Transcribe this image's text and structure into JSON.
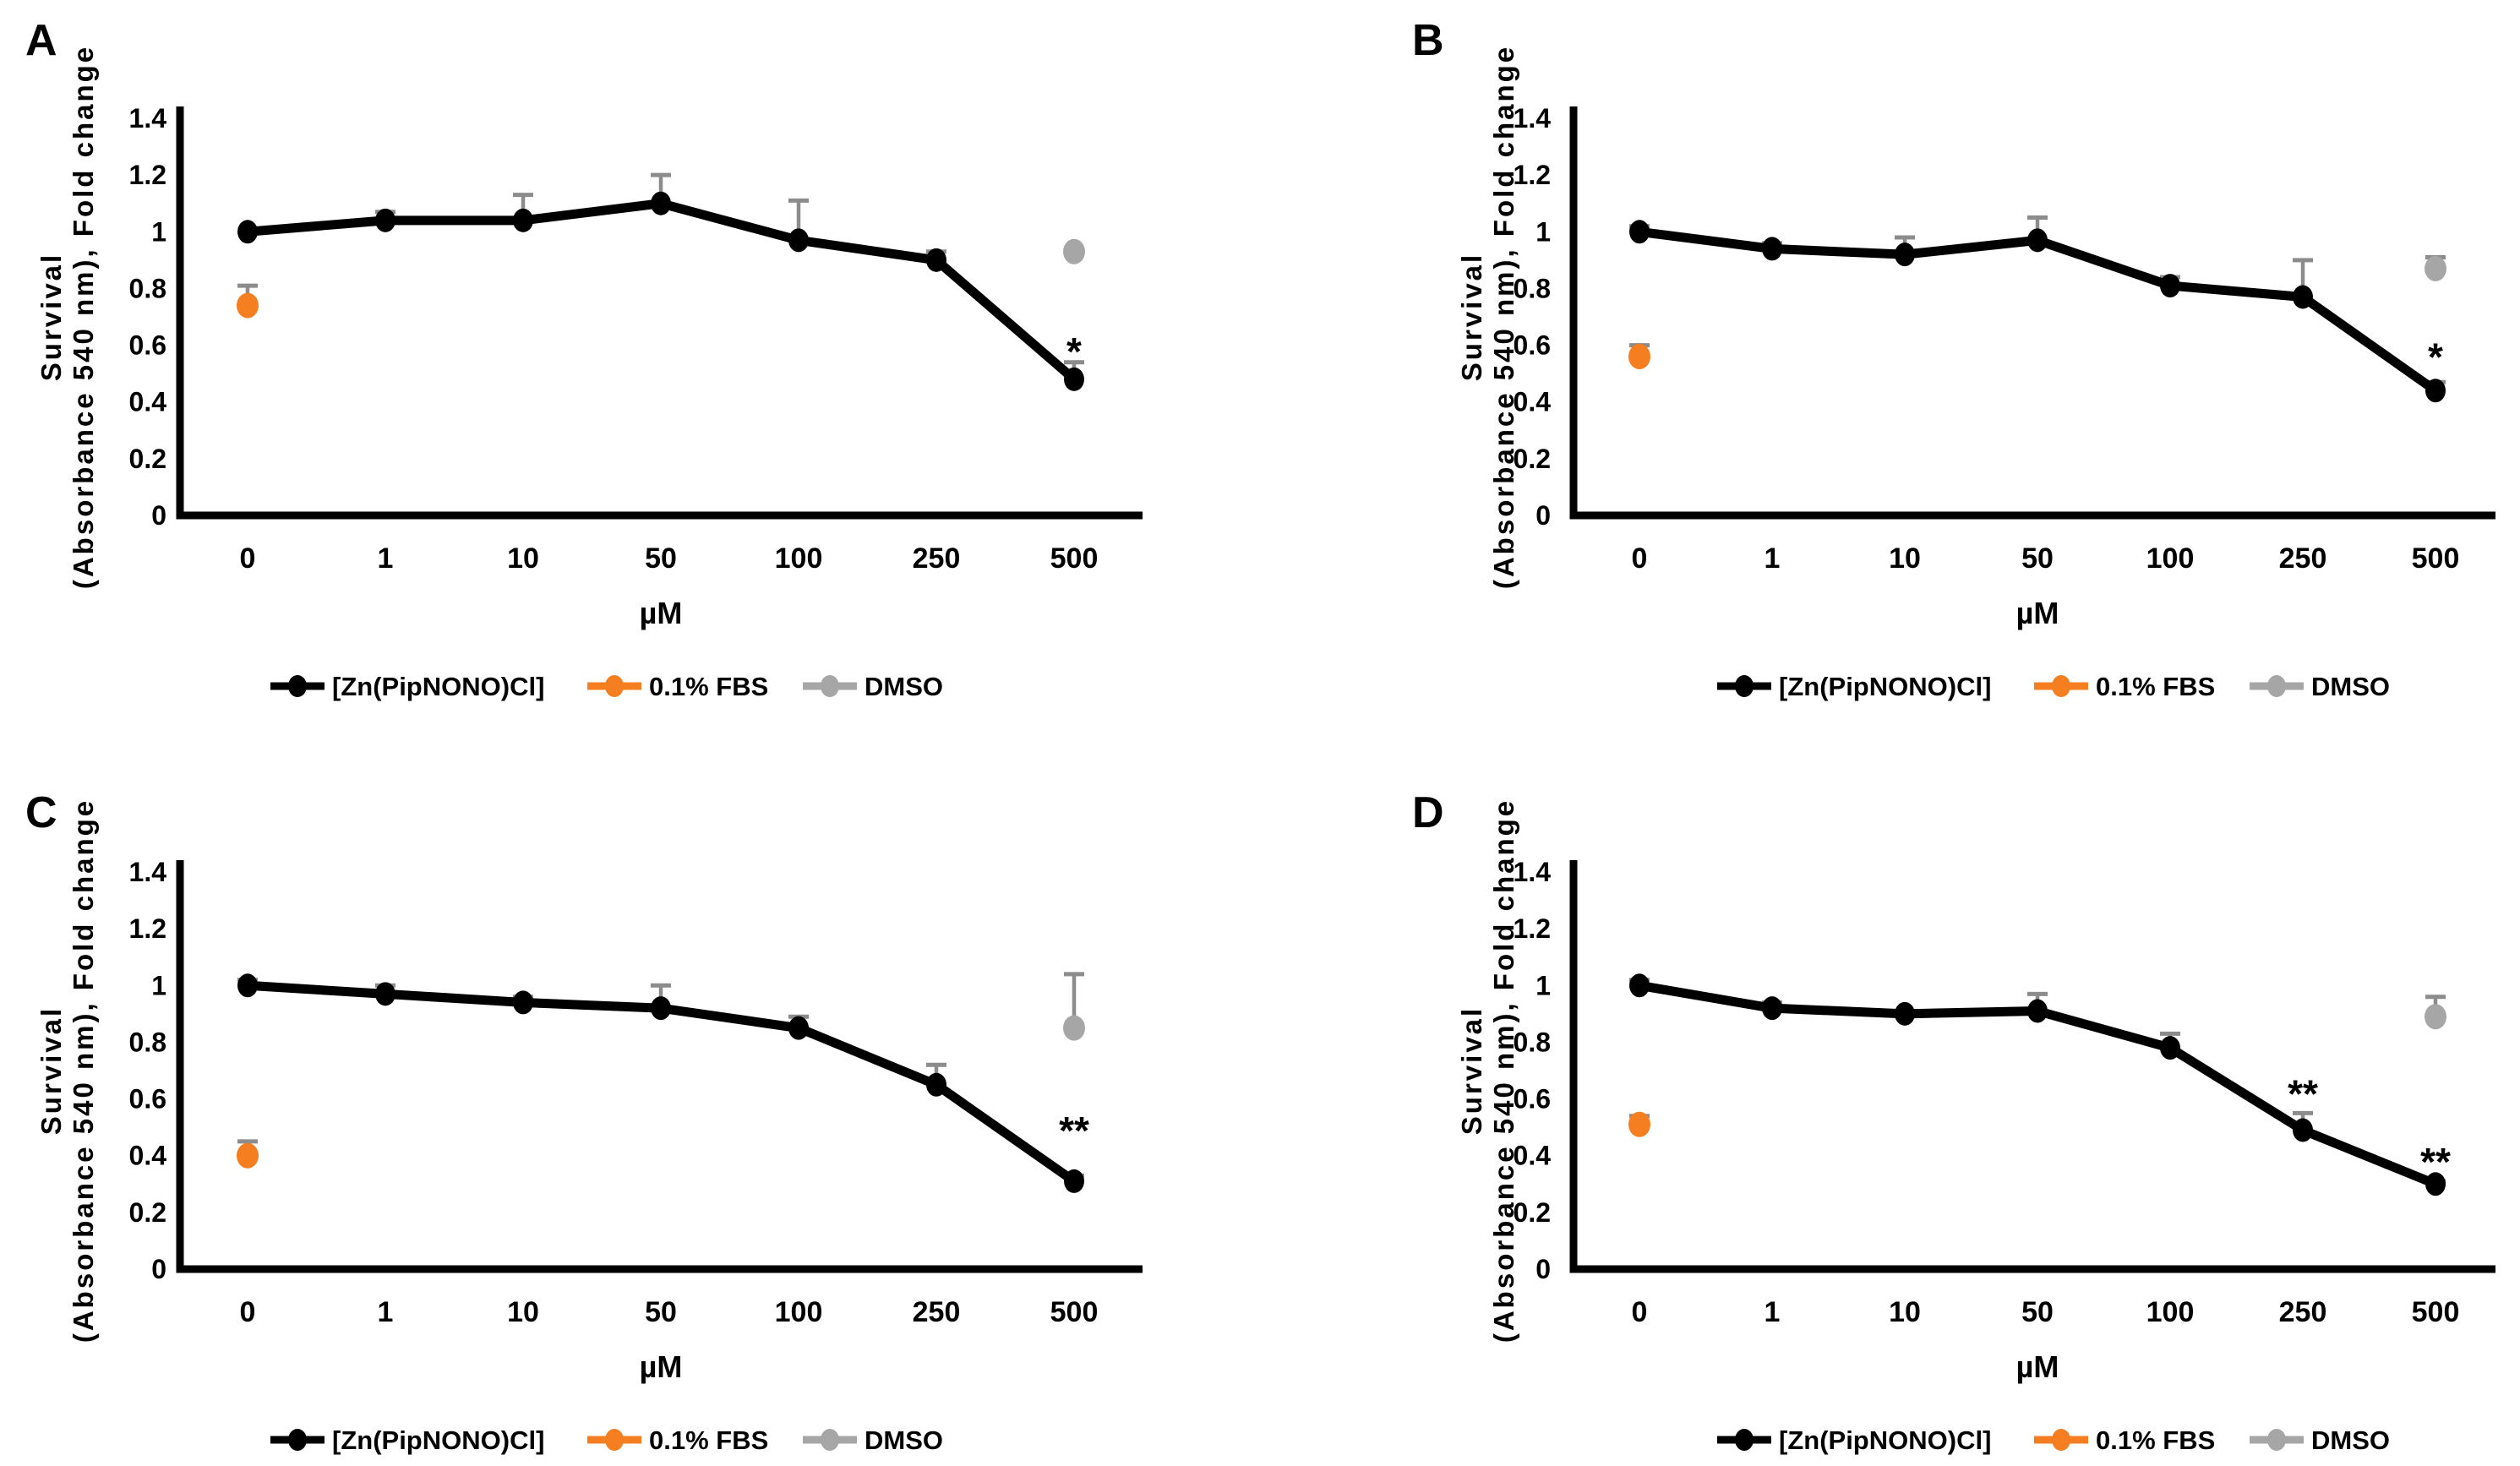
{
  "figure": {
    "background": "#ffffff",
    "colors": {
      "zn": "#000000",
      "fbs": "#F57E20",
      "dmso": "#A6A6A6",
      "error_bar": "#8C8C8C",
      "axis": "#000000",
      "text": "#000000"
    },
    "legend_labels": [
      "[Zn(PipNONO)Cl]",
      "0.1% FBS",
      "DMSO"
    ]
  },
  "chart_data": [
    {
      "panel": "A",
      "type": "line",
      "categories": [
        "0",
        "1",
        "10",
        "50",
        "100",
        "250",
        "500"
      ],
      "xlabel": "µM",
      "ylabel_line1": "Survival",
      "ylabel_line2": "(Absorbance 540 nm), Fold change",
      "ylim": [
        0,
        1.4
      ],
      "yticks": [
        "1.4",
        "1.2",
        "1",
        "0.8",
        "0.6",
        "0.4",
        "0.2",
        "0"
      ],
      "grid": false,
      "legend_position": "bottom",
      "series": [
        {
          "name": "[Zn(PipNONO)Cl]",
          "color": "#000000",
          "values": [
            1.0,
            1.04,
            1.04,
            1.1,
            0.97,
            0.9,
            0.48
          ],
          "errors_up": [
            0,
            0.03,
            0.09,
            0.1,
            0.14,
            0.03,
            0.06
          ]
        },
        {
          "name": "0.1% FBS",
          "color": "#F57E20",
          "points": [
            {
              "category": "0",
              "value": 0.74,
              "error_up": 0.07
            }
          ]
        },
        {
          "name": "DMSO",
          "color": "#A6A6A6",
          "points": [
            {
              "category": "500",
              "value": 0.93,
              "error_up": 0
            }
          ]
        }
      ],
      "annotations": [
        {
          "text": "*",
          "category": "500",
          "value": 0.62
        }
      ]
    },
    {
      "panel": "B",
      "type": "line",
      "categories": [
        "0",
        "1",
        "10",
        "50",
        "100",
        "250",
        "500"
      ],
      "xlabel": "µM",
      "ylabel_line1": "Survival",
      "ylabel_line2": "(Absorbance 540 nm), Fold change",
      "ylim": [
        0,
        1.4
      ],
      "yticks": [
        "1.4",
        "1.2",
        "1",
        "0.8",
        "0.6",
        "0.4",
        "0.2",
        "0"
      ],
      "grid": false,
      "legend_position": "bottom",
      "series": [
        {
          "name": "[Zn(PipNONO)Cl]",
          "color": "#000000",
          "values": [
            1.0,
            0.94,
            0.92,
            0.97,
            0.81,
            0.77,
            0.44
          ],
          "errors_up": [
            0.02,
            0.02,
            0.06,
            0.08,
            0.03,
            0.13,
            0.03
          ]
        },
        {
          "name": "0.1% FBS",
          "color": "#F57E20",
          "points": [
            {
              "category": "0",
              "value": 0.56,
              "error_up": 0.04
            }
          ]
        },
        {
          "name": "DMSO",
          "color": "#A6A6A6",
          "points": [
            {
              "category": "500",
              "value": 0.87,
              "error_up": 0.04
            }
          ]
        }
      ],
      "annotations": [
        {
          "text": "*",
          "category": "500",
          "value": 0.6
        }
      ]
    },
    {
      "panel": "C",
      "type": "line",
      "categories": [
        "0",
        "1",
        "10",
        "50",
        "100",
        "250",
        "500"
      ],
      "xlabel": "µM",
      "ylabel_line1": "Survival",
      "ylabel_line2": "(Absorbance 540 nm), Fold change",
      "ylim": [
        0,
        1.4
      ],
      "yticks": [
        "1.4",
        "1.2",
        "1",
        "0.8",
        "0.6",
        "0.4",
        "0.2",
        "0"
      ],
      "grid": false,
      "legend_position": "bottom",
      "series": [
        {
          "name": "[Zn(PipNONO)Cl]",
          "color": "#000000",
          "values": [
            1.0,
            0.97,
            0.94,
            0.92,
            0.85,
            0.65,
            0.31
          ],
          "errors_up": [
            0.02,
            0.03,
            0.02,
            0.08,
            0.04,
            0.07,
            0.02
          ]
        },
        {
          "name": "0.1% FBS",
          "color": "#F57E20",
          "points": [
            {
              "category": "0",
              "value": 0.4,
              "error_up": 0.05
            }
          ]
        },
        {
          "name": "DMSO",
          "color": "#A6A6A6",
          "points": [
            {
              "category": "500",
              "value": 0.85,
              "error_up": 0.19
            }
          ]
        }
      ],
      "annotations": [
        {
          "text": "**",
          "category": "500",
          "value": 0.53
        }
      ]
    },
    {
      "panel": "D",
      "type": "line",
      "categories": [
        "0",
        "1",
        "10",
        "50",
        "100",
        "250",
        "500"
      ],
      "xlabel": "µM",
      "ylabel_line1": "Survival",
      "ylabel_line2": "(Absorbance 540 nm), Fold change",
      "ylim": [
        0,
        1.4
      ],
      "yticks": [
        "1.4",
        "1.2",
        "1",
        "0.8",
        "0.6",
        "0.4",
        "0.2",
        "0"
      ],
      "grid": false,
      "legend_position": "bottom",
      "series": [
        {
          "name": "[Zn(PipNONO)Cl]",
          "color": "#000000",
          "values": [
            1.0,
            0.92,
            0.9,
            0.91,
            0.78,
            0.49,
            0.3
          ],
          "errors_up": [
            0.02,
            0.02,
            0.01,
            0.06,
            0.05,
            0.06,
            0.01
          ]
        },
        {
          "name": "0.1% FBS",
          "color": "#F57E20",
          "points": [
            {
              "category": "0",
              "value": 0.51,
              "error_up": 0.03
            }
          ]
        },
        {
          "name": "DMSO",
          "color": "#A6A6A6",
          "points": [
            {
              "category": "500",
              "value": 0.89,
              "error_up": 0.07
            }
          ]
        }
      ],
      "annotations": [
        {
          "text": "**",
          "category": "250",
          "value": 0.66
        },
        {
          "text": "**",
          "category": "500",
          "value": 0.42
        }
      ]
    }
  ]
}
